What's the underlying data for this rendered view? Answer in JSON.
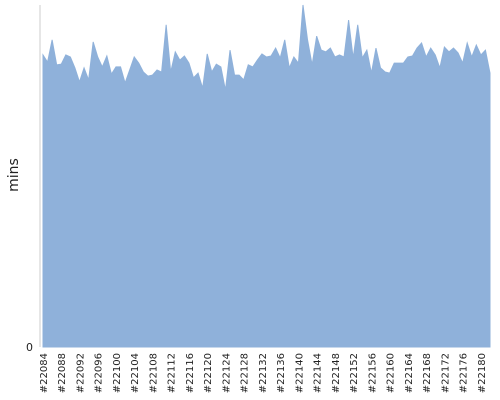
{
  "chart_data": {
    "type": "area",
    "y_label": "mins",
    "color": "#8fb1da",
    "categories": [
      "#22084",
      null,
      null,
      null,
      "#22088",
      null,
      null,
      null,
      "#22092",
      null,
      null,
      null,
      "#22096",
      null,
      null,
      null,
      "#22100",
      null,
      null,
      null,
      "#22104",
      null,
      null,
      null,
      "#22108",
      null,
      null,
      null,
      "#22112",
      null,
      null,
      null,
      "#22116",
      null,
      null,
      null,
      "#22120",
      null,
      null,
      null,
      "#22124",
      null,
      null,
      null,
      "#22128",
      null,
      null,
      null,
      "#22132",
      null,
      null,
      null,
      "#22136",
      null,
      null,
      null,
      "#22140",
      null,
      null,
      null,
      "#22144",
      null,
      null,
      null,
      "#22148",
      null,
      null,
      null,
      "#22152",
      null,
      null,
      null,
      "#22156",
      null,
      null,
      null,
      "#22160",
      null,
      null,
      null,
      "#22164",
      null,
      null,
      null,
      "#22168",
      null,
      null,
      null,
      "#22172",
      null,
      null,
      null,
      "#22176",
      null,
      null,
      null,
      "#22180",
      null,
      null
    ],
    "values": [
      85.4,
      83.3,
      89.8,
      82.5,
      82.7,
      85.4,
      84.8,
      81.6,
      77.5,
      81.6,
      78.1,
      89.2,
      84.8,
      81.9,
      85.1,
      79.8,
      81.9,
      81.9,
      77.2,
      81.0,
      84.8,
      83.0,
      80.4,
      79.2,
      79.5,
      81.0,
      80.4,
      94.2,
      80.4,
      86.3,
      83.9,
      85.1,
      83.0,
      78.7,
      80.1,
      75.7,
      85.7,
      80.4,
      82.7,
      81.9,
      75.1,
      86.8,
      79.5,
      79.5,
      78.1,
      82.5,
      81.9,
      83.9,
      85.7,
      84.8,
      85.1,
      87.4,
      84.5,
      89.8,
      81.6,
      84.8,
      83.0,
      100,
      89.8,
      82.5,
      90.9,
      86.8,
      86.3,
      87.4,
      84.8,
      85.4,
      84.8,
      95.6,
      84.5,
      94.2,
      84.5,
      86.8,
      80.1,
      87.4,
      81.6,
      80.4,
      80.1,
      83.0,
      83.0,
      83.0,
      84.8,
      85.1,
      87.4,
      88.9,
      84.8,
      87.4,
      85.4,
      81.6,
      87.7,
      86.3,
      87.4,
      86.0,
      83.0,
      88.9,
      84.8,
      88.3,
      85.4,
      86.8,
      80.1
    ],
    "ylim": [
      0,
      100
    ],
    "yticks": [
      0
    ]
  }
}
